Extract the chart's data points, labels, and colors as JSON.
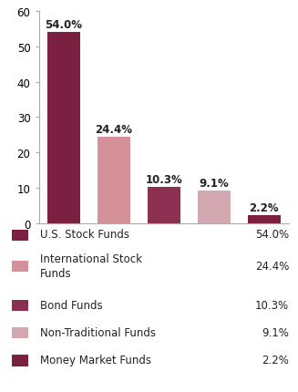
{
  "categories": [
    "",
    "",
    "",
    "",
    ""
  ],
  "values": [
    54.0,
    24.4,
    10.3,
    9.1,
    2.2
  ],
  "bar_colors": [
    "#7b2040",
    "#d4919a",
    "#8b3050",
    "#d4a8b0",
    "#7b2040"
  ],
  "labels": [
    "54.0%",
    "24.4%",
    "10.3%",
    "9.1%",
    "2.2%"
  ],
  "ylim": [
    0,
    60
  ],
  "yticks": [
    0,
    10,
    20,
    30,
    40,
    50,
    60
  ],
  "legend_labels": [
    "U.S. Stock Funds",
    "International Stock\nFunds",
    "Bond Funds",
    "Non-Traditional Funds",
    "Money Market Funds"
  ],
  "legend_values": [
    "54.0%",
    "24.4%",
    "10.3%",
    "9.1%",
    "2.2%"
  ],
  "legend_colors": [
    "#7b2040",
    "#d4919a",
    "#8b3050",
    "#d4a8b0",
    "#7b2040"
  ],
  "background_color": "#ffffff",
  "label_fontsize": 8.5,
  "legend_fontsize": 8.5,
  "tick_fontsize": 8.5
}
